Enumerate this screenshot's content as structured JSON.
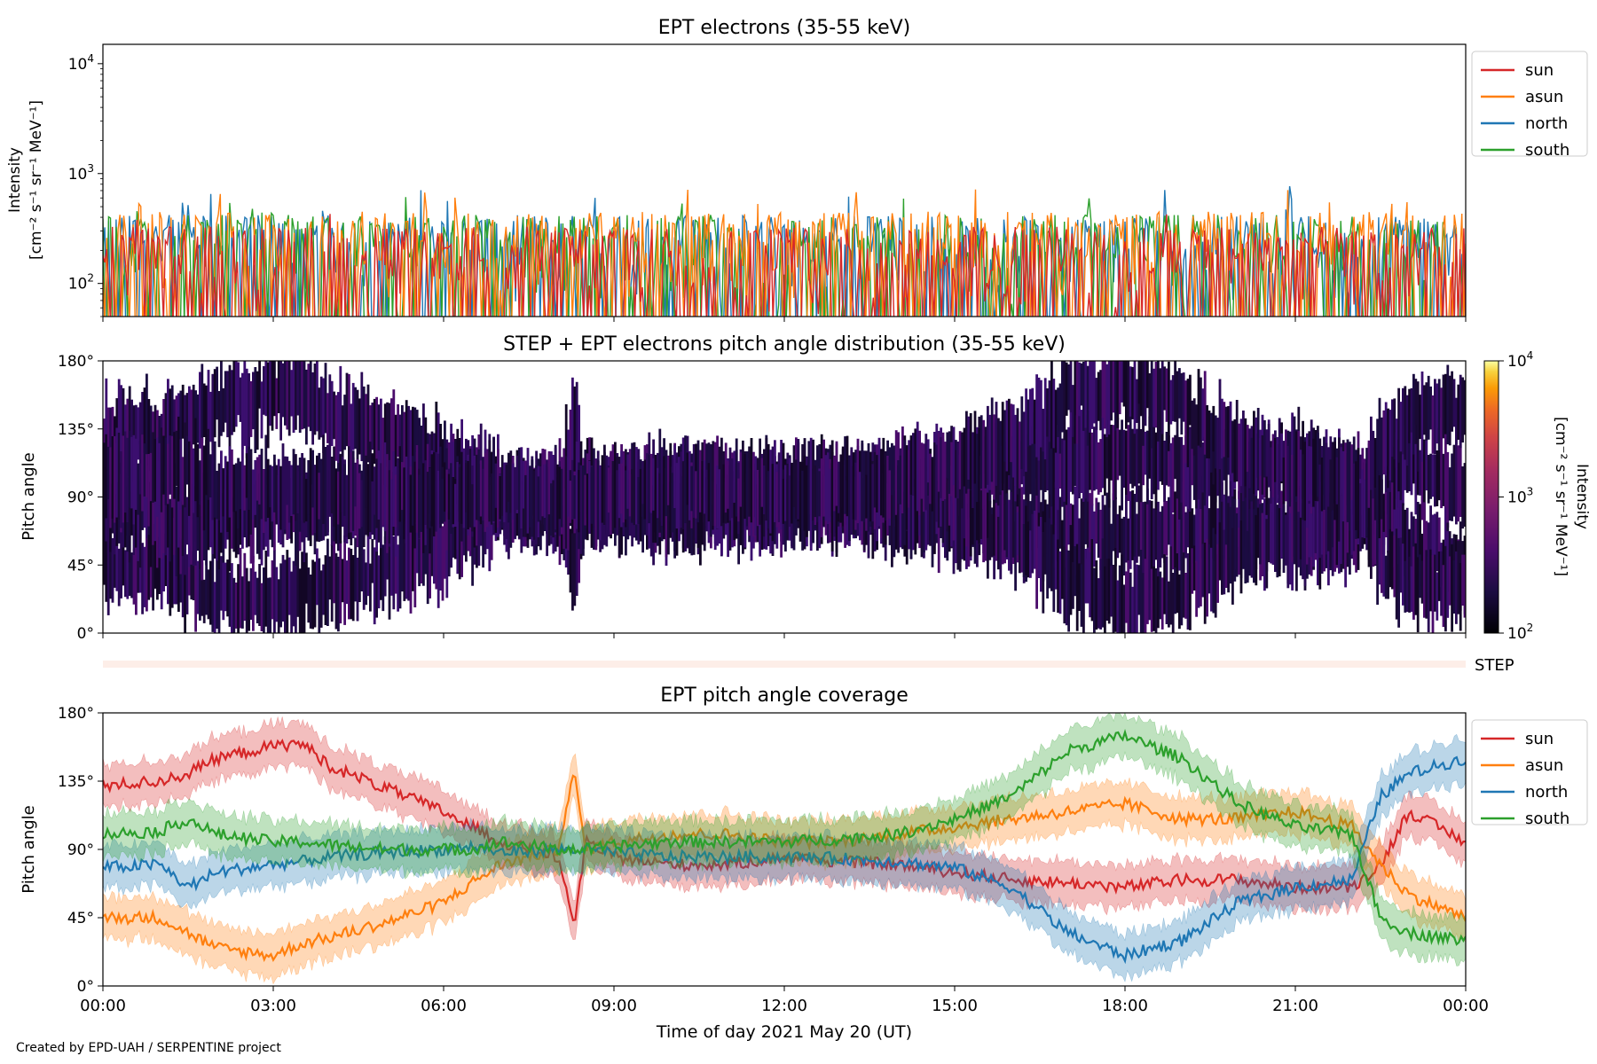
{
  "footer": {
    "credit": "Created by EPD-UAH / SERPENTINE project"
  },
  "colors": {
    "sun": "#d62728",
    "asun": "#ff7f0e",
    "north": "#1f77b4",
    "south": "#2ca02c",
    "step_band": "#fdeee8"
  },
  "chart_data": [
    {
      "type": "line",
      "title": "EPT electrons (35-55 keV)",
      "ylabel": "Intensity",
      "ylabel_units": "[cm⁻² s⁻¹ sr⁻¹ MeV⁻¹]",
      "yscale": "log",
      "ylim": [
        50,
        15000
      ],
      "yticks": [
        {
          "value": 100,
          "base": "10",
          "exp": "2"
        },
        {
          "value": 1000,
          "base": "10",
          "exp": "3"
        },
        {
          "value": 10000,
          "base": "10",
          "exp": "4"
        }
      ],
      "x_range_hours": [
        0,
        24
      ],
      "legend_position": "right",
      "series": [
        {
          "name": "sun",
          "typical_range": [
            50,
            330
          ],
          "max": 520
        },
        {
          "name": "asun",
          "typical_range": [
            70,
            450
          ],
          "max": 760
        },
        {
          "name": "north",
          "typical_range": [
            60,
            420
          ],
          "max": 800
        },
        {
          "name": "south",
          "typical_range": [
            60,
            420
          ],
          "max": 680
        }
      ]
    },
    {
      "type": "heatmap",
      "title": "STEP + EPT electrons pitch angle distribution (35-55 keV)",
      "ylabel": "Pitch angle",
      "ylim": [
        0,
        180
      ],
      "yticks": [
        "0°",
        "45°",
        "90°",
        "135°",
        "180°"
      ],
      "x_range_hours": [
        0,
        24
      ],
      "colorbar": {
        "label": "Intensity",
        "units": "[cm⁻² s⁻¹ sr⁻¹ MeV⁻¹]",
        "scale": "log",
        "range": [
          100,
          10000
        ],
        "ticks": [
          {
            "value": 100,
            "base": "10",
            "exp": "2"
          },
          {
            "value": 1000,
            "base": "10",
            "exp": "3"
          },
          {
            "value": 10000,
            "base": "10",
            "exp": "4"
          }
        ],
        "colormap": "inferno"
      }
    },
    {
      "type": "band",
      "label": "STEP"
    },
    {
      "type": "line",
      "title": "EPT pitch angle coverage",
      "ylabel": "Pitch angle",
      "xlabel": "Time of day 2021 May 20 (UT)",
      "ylim": [
        0,
        180
      ],
      "yticks": [
        "0°",
        "45°",
        "90°",
        "135°",
        "180°"
      ],
      "xticks": [
        "00:00",
        "03:00",
        "06:00",
        "09:00",
        "12:00",
        "15:00",
        "18:00",
        "21:00",
        "00:00"
      ],
      "legend_position": "right",
      "series": [
        {
          "name": "sun",
          "x_hours": [
            0,
            1,
            1.5,
            2,
            3,
            3.5,
            4,
            5,
            6,
            6.5,
            7,
            8,
            8.3,
            8.5,
            9,
            10,
            11,
            12,
            13,
            14,
            15,
            16,
            17,
            18,
            19,
            20,
            21,
            22,
            22.5,
            23,
            24
          ],
          "y": [
            132,
            135,
            140,
            150,
            158,
            160,
            145,
            130,
            115,
            105,
            95,
            85,
            40,
            95,
            85,
            80,
            80,
            85,
            82,
            80,
            75,
            70,
            68,
            65,
            70,
            70,
            65,
            65,
            80,
            115,
            95
          ]
        },
        {
          "name": "asun",
          "x_hours": [
            0,
            1,
            1.5,
            2,
            3,
            3.5,
            4,
            5,
            6,
            6.5,
            7,
            8,
            8.3,
            8.5,
            9,
            10,
            11,
            12,
            13,
            14,
            15,
            16,
            17,
            18,
            19,
            20,
            21,
            22,
            22.5,
            23,
            24
          ],
          "y": [
            45,
            45,
            35,
            25,
            20,
            28,
            32,
            42,
            55,
            68,
            80,
            90,
            140,
            90,
            95,
            100,
            100,
            95,
            95,
            100,
            105,
            110,
            115,
            120,
            110,
            110,
            115,
            105,
            80,
            60,
            45
          ]
        },
        {
          "name": "north",
          "x_hours": [
            0,
            1,
            1.5,
            2,
            3,
            3.5,
            4,
            5,
            6,
            6.5,
            7,
            8,
            8.3,
            8.5,
            9,
            10,
            11,
            12,
            13,
            14,
            15,
            16,
            17,
            18,
            19,
            20,
            21,
            22,
            22.5,
            23,
            24
          ],
          "y": [
            78,
            80,
            65,
            75,
            80,
            82,
            85,
            88,
            90,
            92,
            88,
            90,
            90,
            90,
            88,
            85,
            85,
            85,
            84,
            82,
            78,
            65,
            35,
            20,
            30,
            55,
            65,
            70,
            125,
            140,
            150
          ]
        },
        {
          "name": "south",
          "x_hours": [
            0,
            1,
            1.5,
            2,
            3,
            3.5,
            4,
            5,
            6,
            6.5,
            7,
            8,
            8.3,
            8.5,
            9,
            10,
            11,
            12,
            13,
            14,
            15,
            16,
            17,
            18,
            19,
            20,
            21,
            22,
            22.5,
            23,
            24
          ],
          "y": [
            100,
            102,
            110,
            100,
            95,
            95,
            93,
            90,
            90,
            90,
            95,
            90,
            90,
            90,
            92,
            95,
            95,
            95,
            97,
            100,
            110,
            125,
            155,
            165,
            150,
            120,
            105,
            100,
            45,
            35,
            30
          ]
        }
      ]
    }
  ]
}
